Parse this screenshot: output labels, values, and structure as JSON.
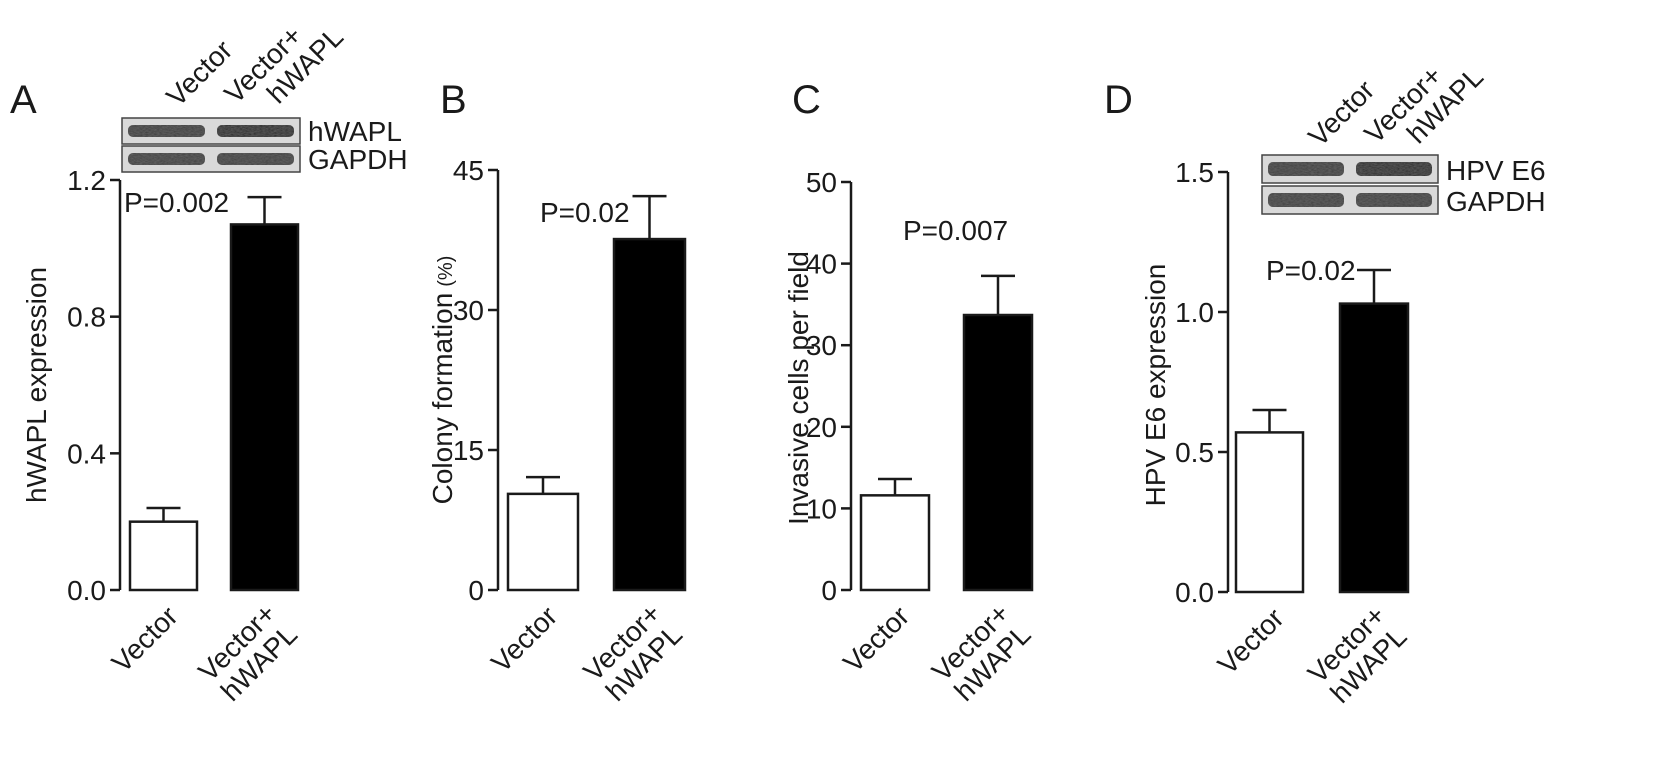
{
  "figure": {
    "background": "#ffffff",
    "colors": {
      "control_bar": "#ffffff",
      "treatment_bar": "#000000",
      "axis": "#1a1a1a"
    }
  },
  "chart_data": [
    {
      "type": "bar",
      "panel_label": "A",
      "categories": [
        [
          "Vector"
        ],
        [
          "Vector+",
          "hWAPL"
        ]
      ],
      "values": [
        0.2,
        1.07
      ],
      "errors": [
        0.04,
        0.08
      ],
      "ylabel": "hWAPL expression",
      "ylim": [
        0,
        1.2
      ],
      "yticks": [
        "0.0",
        "0.4",
        "0.8",
        "1.2"
      ],
      "ytick_values": [
        0,
        0.4,
        0.8,
        1.2
      ],
      "annotation": "P=0.002",
      "blot": {
        "lanes": [
          [
            "Vector"
          ],
          [
            "Vector+",
            "hWAPL"
          ]
        ],
        "bands": [
          "hWAPL",
          "GAPDH"
        ]
      }
    },
    {
      "type": "bar",
      "panel_label": "B",
      "categories": [
        [
          "Vector"
        ],
        [
          "Vector+",
          "hWAPL"
        ]
      ],
      "values": [
        10.3,
        37.6
      ],
      "errors": [
        1.8,
        4.6
      ],
      "ylabel": "Colony formation",
      "ylabel_unit": "(%)",
      "ylim": [
        0,
        45
      ],
      "yticks": [
        "0",
        "15",
        "30",
        "45"
      ],
      "ytick_values": [
        0,
        15,
        30,
        45
      ],
      "annotation": "P=0.02"
    },
    {
      "type": "bar",
      "panel_label": "C",
      "categories": [
        [
          "Vector"
        ],
        [
          "Vector+",
          "hWAPL"
        ]
      ],
      "values": [
        11.6,
        33.7
      ],
      "errors": [
        2.0,
        4.8
      ],
      "ylabel": "Invasive cells per field",
      "ylim": [
        0,
        50
      ],
      "yticks": [
        "0",
        "10",
        "20",
        "30",
        "40",
        "50"
      ],
      "ytick_values": [
        0,
        10,
        20,
        30,
        40,
        50
      ],
      "annotation": "P=0.007"
    },
    {
      "type": "bar",
      "panel_label": "D",
      "categories": [
        [
          "Vector"
        ],
        [
          "Vector+",
          "hWAPL"
        ]
      ],
      "values": [
        0.57,
        1.03
      ],
      "errors": [
        0.08,
        0.12
      ],
      "ylabel": "HPV E6 expression",
      "ylim": [
        0,
        1.5
      ],
      "yticks": [
        "0.0",
        "0.5",
        "1.0",
        "1.5"
      ],
      "ytick_values": [
        0,
        0.5,
        1.0,
        1.5
      ],
      "annotation": "P=0.02",
      "blot": {
        "lanes": [
          [
            "Vector"
          ],
          [
            "Vector+",
            "hWAPL"
          ]
        ],
        "bands": [
          "HPV E6",
          "GAPDH"
        ]
      }
    }
  ]
}
